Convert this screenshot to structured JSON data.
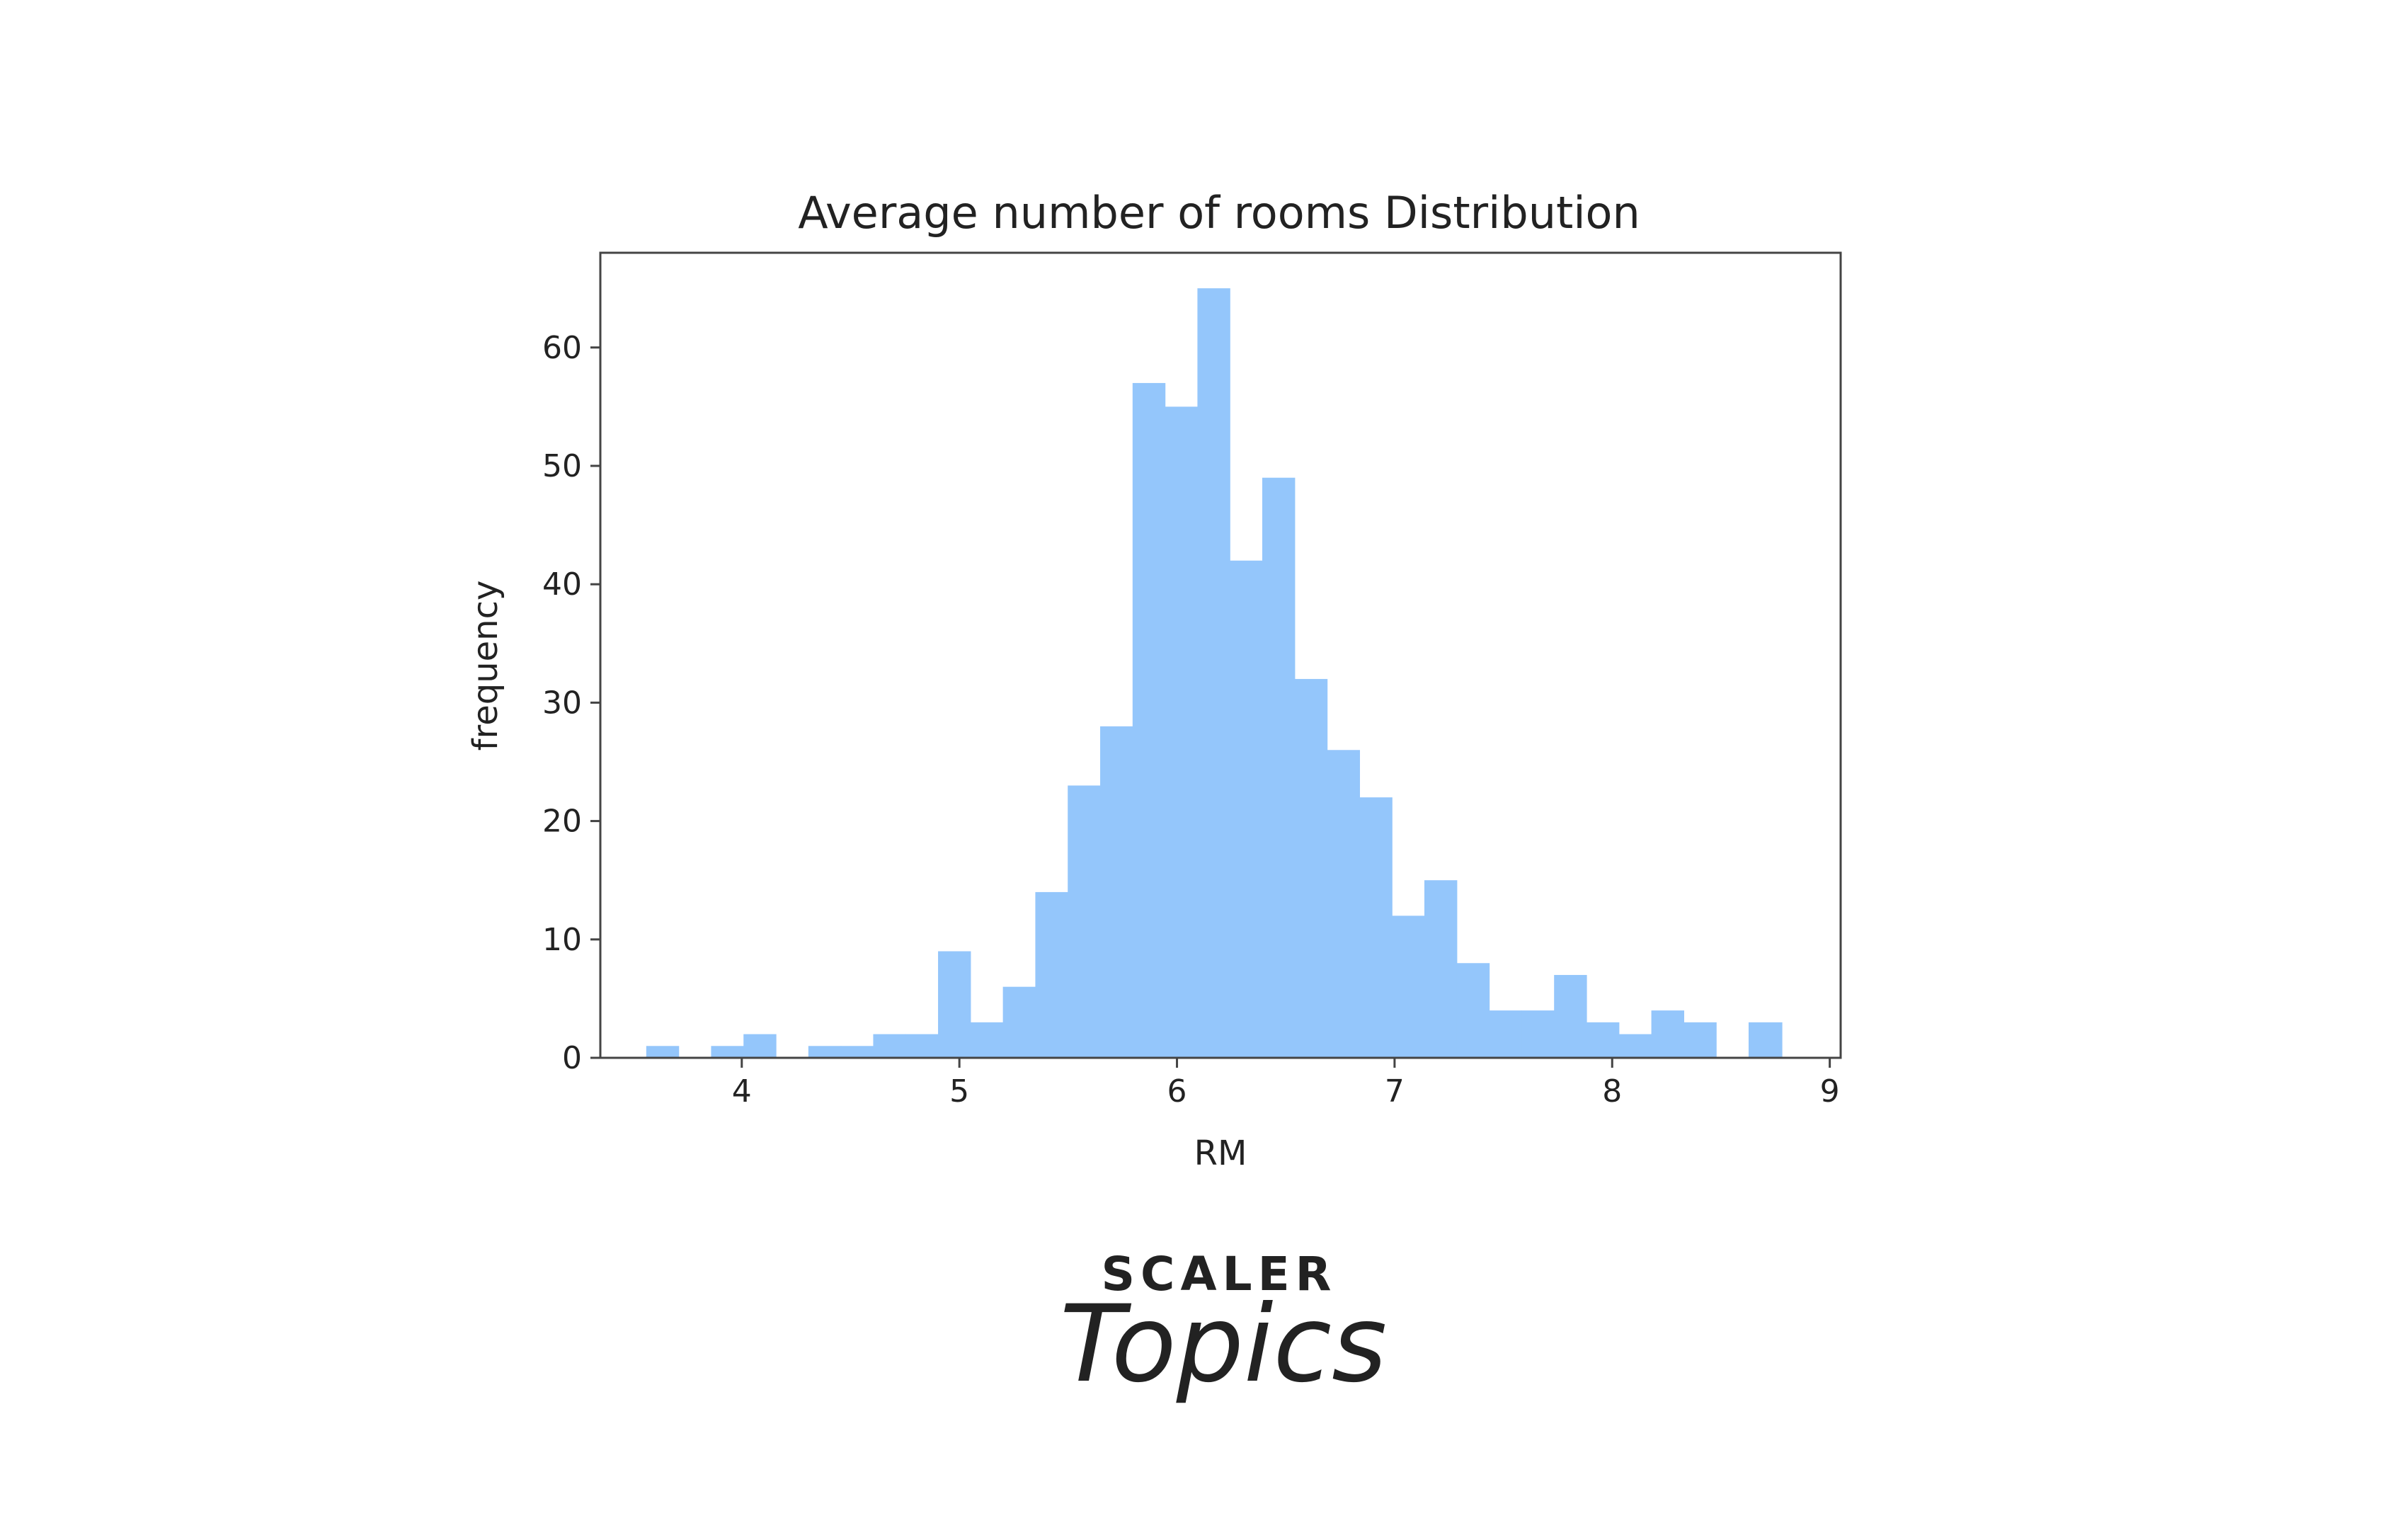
{
  "brand": {
    "top_text": "SCALER",
    "script_text": "Topics",
    "top_color": "#14213a",
    "script_color": "#e0246e"
  },
  "chart_data": {
    "type": "bar",
    "subtype": "histogram",
    "title": "Average number of rooms Distribution",
    "xlabel": "RM",
    "ylabel": "frequency",
    "xlim": [
      3.35,
      9.05
    ],
    "ylim": [
      0,
      68
    ],
    "x_ticks": [
      4,
      5,
      6,
      7,
      8,
      9
    ],
    "y_ticks": [
      0,
      10,
      20,
      30,
      40,
      50,
      60
    ],
    "grid": false,
    "legend": "none",
    "bar_color": "#94c6fb",
    "bin_edges": [
      3.561,
      3.71,
      3.859,
      4.008,
      4.157,
      4.306,
      4.455,
      4.604,
      4.753,
      4.902,
      5.051,
      5.2,
      5.349,
      5.498,
      5.647,
      5.796,
      5.945,
      6.094,
      6.243,
      6.392,
      6.541,
      6.69,
      6.839,
      6.988,
      7.137,
      7.286,
      7.435,
      7.584,
      7.733,
      7.882,
      8.031,
      8.18,
      8.329,
      8.478,
      8.627,
      8.78
    ],
    "counts": [
      1,
      0,
      1,
      2,
      0,
      1,
      1,
      2,
      2,
      9,
      3,
      6,
      14,
      23,
      28,
      57,
      55,
      65,
      42,
      49,
      32,
      26,
      22,
      12,
      15,
      8,
      4,
      4,
      7,
      3,
      2,
      4,
      3,
      0,
      3
    ]
  }
}
